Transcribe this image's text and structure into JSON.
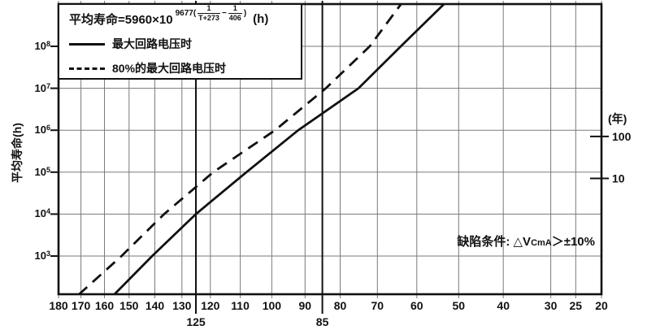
{
  "chart_data": {
    "type": "line",
    "title": "",
    "x_scale": "arrhenius (position proportional to 1/(T+273))",
    "x_range_celsius": [
      180,
      20
    ],
    "x_ticks_celsius": [
      180,
      170,
      160,
      150,
      140,
      130,
      120,
      110,
      100,
      90,
      80,
      70,
      60,
      50,
      40,
      30,
      25,
      20
    ],
    "x_highlight_ticks_celsius": [
      125,
      85
    ],
    "y_scale": "log10 hours",
    "y_label": "平均寿命(h)",
    "y_tick_exponents": [
      8,
      7,
      6,
      5,
      4,
      3
    ],
    "y_top_exponent": 9,
    "y_bottom_log": 2.08,
    "grid": true,
    "right_axis": {
      "label": "(年)",
      "ticks": [
        {
          "label": "100",
          "log_h": 5.85
        },
        {
          "label": "10",
          "log_h": 4.85
        }
      ]
    },
    "series": [
      {
        "name": "最大回路电压时",
        "style": "solid",
        "points": [
          {
            "t_celsius": 156,
            "log_h": 2.08
          },
          {
            "t_celsius": 141,
            "log_h": 3
          },
          {
            "t_celsius": 125,
            "log_h": 4
          },
          {
            "t_celsius": 108,
            "log_h": 5
          },
          {
            "t_celsius": 92,
            "log_h": 6
          },
          {
            "t_celsius": 75,
            "log_h": 7
          },
          {
            "t_celsius": 64,
            "log_h": 8
          },
          {
            "t_celsius": 53.5,
            "log_h": 9
          }
        ]
      },
      {
        "name": "80%的最大回路电压时",
        "style": "dashed",
        "points": [
          {
            "t_celsius": 171,
            "log_h": 2.08
          },
          {
            "t_celsius": 153,
            "log_h": 3
          },
          {
            "t_celsius": 136.5,
            "log_h": 4
          },
          {
            "t_celsius": 119,
            "log_h": 5
          },
          {
            "t_celsius": 99,
            "log_h": 6
          },
          {
            "t_celsius": 84,
            "log_h": 7
          },
          {
            "t_celsius": 72,
            "log_h": 8
          },
          {
            "t_celsius": 64,
            "log_h": 9
          }
        ]
      }
    ],
    "formula": {
      "prefix": "平均寿命=5960×10",
      "exp_open": "9677(",
      "frac1_num": "1",
      "frac1_den": "T+273",
      "minus": "−",
      "frac2_num": "1",
      "frac2_den": "406",
      "exp_close": ")",
      "unit": "(h)"
    },
    "annotation": {
      "prefix": "缺陷条件: △V",
      "sub": "CmA",
      "suffix": "＞±10%"
    },
    "colors": {
      "line": "#111111",
      "grid": "#7a7a7a",
      "background": "#ffffff"
    }
  }
}
